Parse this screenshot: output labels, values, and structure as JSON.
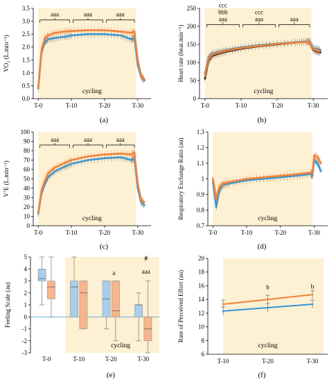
{
  "colors": {
    "band": "#fdf0d3",
    "blue": "#3a96d2",
    "orange": "#f0833a",
    "black": "#222222",
    "box_blue": "#a9cdea",
    "box_orange": "#f6b58c",
    "zero_line": "#3a96d2"
  },
  "chart_data": [
    {
      "id": "a",
      "type": "line",
      "panel_label": "(a)",
      "ylabel": "VO₂ (L.min⁻¹)",
      "ylim": [
        0,
        3.5
      ],
      "yticks": [
        0,
        0.5,
        1,
        1.5,
        2,
        2.5,
        3,
        3.5
      ],
      "ytick_labels": [
        "0.0",
        "0.5",
        "1.0",
        "1.5",
        "2.0",
        "2.5",
        "3.0",
        "3.5"
      ],
      "xlim": [
        -1.5,
        34
      ],
      "xticks": [
        0,
        10,
        20,
        30
      ],
      "xtick_labels": [
        "T-0",
        "T-10",
        "T-20",
        "T-30"
      ],
      "band": [
        0,
        29.5
      ],
      "band_label": "cycling",
      "annotations": [
        {
          "label": "aaa",
          "x0": 0.5,
          "x1": 9.5,
          "y": 3.05
        },
        {
          "label": "aaa",
          "x0": 10.5,
          "x1": 19.5,
          "y": 3.05
        },
        {
          "label": "aaa",
          "x0": 20.5,
          "x1": 29,
          "y": 3.05
        }
      ],
      "series": [
        {
          "color": "blue",
          "x": [
            0,
            1,
            2,
            3,
            5,
            8,
            10,
            15,
            20,
            25,
            28,
            29,
            30,
            31,
            32
          ],
          "y": [
            0.4,
            1.8,
            2.2,
            2.3,
            2.35,
            2.4,
            2.45,
            2.5,
            2.5,
            2.45,
            2.3,
            2.35,
            1.3,
            0.85,
            0.7
          ]
        },
        {
          "color": "orange",
          "x": [
            0,
            1,
            2,
            3,
            5,
            8,
            10,
            15,
            20,
            25,
            28,
            29,
            30,
            31,
            32
          ],
          "y": [
            0.45,
            1.9,
            2.35,
            2.45,
            2.55,
            2.6,
            2.62,
            2.65,
            2.65,
            2.6,
            2.55,
            2.6,
            1.5,
            0.9,
            0.75
          ]
        }
      ]
    },
    {
      "id": "b",
      "type": "line",
      "panel_label": "(b)",
      "ylabel": "Heart rate (beat.min⁻¹)",
      "ylim": [
        0,
        250
      ],
      "yticks": [
        0,
        50,
        100,
        150,
        200,
        250
      ],
      "ytick_labels": [
        "0",
        "50",
        "100",
        "150",
        "200",
        "250"
      ],
      "xlim": [
        -1.5,
        34
      ],
      "xticks": [
        0,
        10,
        20,
        30
      ],
      "xtick_labels": [
        "T-0",
        "T-10",
        "T-20",
        "T-30"
      ],
      "band": [
        0,
        29.5
      ],
      "band_label": "cycling",
      "annotations": [
        {
          "label": "aaa",
          "extra": [
            "ccc",
            "bbb"
          ],
          "x0": 0.5,
          "x1": 9.5,
          "y": 205
        },
        {
          "label": "aaa",
          "extra": [
            "ccc"
          ],
          "x0": 10.5,
          "x1": 19.5,
          "y": 205
        },
        {
          "label": "aaa",
          "x0": 20.5,
          "x1": 29,
          "y": 205
        }
      ],
      "series": [
        {
          "color": "black",
          "x": [
            0,
            1,
            2,
            4,
            6,
            10,
            15,
            20,
            25,
            28,
            29,
            30,
            31,
            32
          ],
          "y": [
            55,
            105,
            118,
            125,
            130,
            138,
            145,
            150,
            155,
            158,
            157,
            135,
            130,
            128
          ]
        },
        {
          "color": "blue",
          "x": [
            0,
            1,
            2,
            4,
            6,
            10,
            15,
            20,
            25,
            28,
            29,
            30,
            31,
            32
          ],
          "y": [
            70,
            115,
            125,
            130,
            135,
            142,
            148,
            152,
            156,
            158,
            158,
            140,
            138,
            135
          ]
        },
        {
          "color": "orange",
          "x": [
            0,
            1,
            2,
            4,
            6,
            10,
            15,
            20,
            25,
            28,
            29,
            30,
            31,
            32
          ],
          "y": [
            62,
            110,
            122,
            128,
            133,
            140,
            146,
            151,
            155,
            157,
            157,
            138,
            133,
            132
          ]
        }
      ]
    },
    {
      "id": "c",
      "type": "line",
      "panel_label": "(c)",
      "ylabel": "V’E (L.min⁻¹)",
      "ylim": [
        0,
        100
      ],
      "yticks": [
        0,
        10,
        20,
        30,
        40,
        50,
        60,
        70,
        80,
        90,
        100
      ],
      "ytick_labels": [
        "0",
        "10",
        "20",
        "30",
        "40",
        "50",
        "60",
        "70",
        "80",
        "90",
        "100"
      ],
      "xlim": [
        -1.5,
        34
      ],
      "xticks": [
        0,
        10,
        20,
        30
      ],
      "xtick_labels": [
        "T-0",
        "T-10",
        "T-20",
        "T-30"
      ],
      "band": [
        0,
        29.5
      ],
      "band_label": "cycling",
      "annotations": [
        {
          "label": "aaa",
          "x0": 0.5,
          "x1": 9.5,
          "y": 86
        },
        {
          "label": "aaa",
          "x0": 10.5,
          "x1": 19.5,
          "y": 86
        },
        {
          "label": "aaa",
          "x0": 20.5,
          "x1": 29,
          "y": 86
        }
      ],
      "series": [
        {
          "color": "blue",
          "x": [
            0,
            1,
            2,
            3,
            5,
            8,
            10,
            15,
            20,
            25,
            28,
            29,
            30,
            31,
            32
          ],
          "y": [
            13,
            35,
            45,
            52,
            58,
            63,
            66,
            70,
            72,
            73,
            70,
            72,
            40,
            25,
            22
          ]
        },
        {
          "color": "orange",
          "x": [
            0,
            1,
            2,
            3,
            5,
            8,
            10,
            15,
            20,
            25,
            28,
            29,
            30,
            31,
            32
          ],
          "y": [
            14,
            38,
            48,
            56,
            62,
            67,
            70,
            74,
            76,
            77,
            76,
            78,
            45,
            28,
            25
          ]
        }
      ]
    },
    {
      "id": "d",
      "type": "line",
      "panel_label": "(d)",
      "ylabel": "Respiratory Exchange Ratio (au)",
      "ylim": [
        0.7,
        1.3
      ],
      "yticks": [
        0.7,
        0.8,
        0.9,
        1.0,
        1.1,
        1.2,
        1.3
      ],
      "ytick_labels": [
        "0.7",
        "0.8",
        "0.9",
        "1",
        "1.1",
        "1.2",
        "1.3"
      ],
      "xlim": [
        -1.5,
        34
      ],
      "xticks": [
        0,
        10,
        20,
        30
      ],
      "xtick_labels": [
        "T-0",
        "T-10",
        "T-20",
        "T-30"
      ],
      "band": [
        0,
        29.5
      ],
      "band_label": "cycling",
      "annotations": [],
      "series": [
        {
          "color": "blue",
          "x": [
            0,
            0.5,
            1,
            1.5,
            2,
            3,
            5,
            10,
            15,
            20,
            25,
            29,
            29.5,
            30,
            31,
            32
          ],
          "y": [
            0.98,
            0.9,
            0.82,
            0.88,
            0.93,
            0.96,
            0.97,
            0.99,
            1.0,
            1.01,
            1.02,
            1.03,
            1.02,
            1.12,
            1.1,
            1.05
          ]
        },
        {
          "color": "orange",
          "x": [
            0,
            0.5,
            1,
            1.5,
            2,
            3,
            5,
            10,
            15,
            20,
            25,
            29,
            29.5,
            30,
            31,
            32
          ],
          "y": [
            1.0,
            0.94,
            0.87,
            0.92,
            0.95,
            0.97,
            0.98,
            1.0,
            1.01,
            1.02,
            1.03,
            1.04,
            1.04,
            1.15,
            1.14,
            1.1
          ]
        }
      ]
    },
    {
      "id": "e",
      "type": "box",
      "panel_label": "(e)",
      "ylabel": "Feeling Scale (au)",
      "ylim": [
        -3,
        5
      ],
      "yticks": [
        -3,
        -2,
        -1,
        0,
        1,
        2,
        3,
        4,
        5
      ],
      "ytick_labels": [
        "-3",
        "-2",
        "-1",
        "0",
        "1",
        "2",
        "3",
        "4",
        "5"
      ],
      "categories": [
        "T-0",
        "T-10",
        "T-20",
        "T-30"
      ],
      "band_categories": [
        1,
        3
      ],
      "band_label": "cycling",
      "cat_annotations": [
        {
          "cat": 2,
          "label": "a",
          "y": 3.5
        },
        {
          "cat": 3,
          "label": "aaa",
          "y": 3.6
        },
        {
          "cat": 3,
          "label": "#",
          "y": 4.7
        }
      ],
      "series": [
        {
          "color": "box_blue",
          "boxes": [
            {
              "min": 1,
              "q1": 3,
              "median": 3.2,
              "q3": 4,
              "max": 5
            },
            {
              "min": 0,
              "q1": 0,
              "median": 2.5,
              "q3": 3,
              "max": 5
            },
            {
              "min": -1,
              "q1": 0,
              "median": 1.5,
              "q3": 3,
              "max": 3
            },
            {
              "min": -2,
              "q1": 0,
              "median": 1,
              "q3": 1,
              "max": 2
            }
          ]
        },
        {
          "color": "box_orange",
          "boxes": [
            {
              "min": 0,
              "q1": 1.5,
              "median": 2.5,
              "q3": 3,
              "max": 5
            },
            {
              "min": -1,
              "q1": -1,
              "median": 2,
              "q3": 3,
              "max": 3
            },
            {
              "min": -2,
              "q1": 0,
              "median": 0.5,
              "q3": 3,
              "max": 3
            },
            {
              "min": -3,
              "q1": -2,
              "median": -1,
              "q3": 0,
              "max": 3
            }
          ]
        }
      ]
    },
    {
      "id": "f",
      "type": "line",
      "panel_label": "(f)",
      "ylabel": "Rate of Perceived Effort (au)",
      "ylim": [
        6,
        20
      ],
      "yticks": [
        6,
        8,
        10,
        12,
        14,
        16,
        18,
        20
      ],
      "ytick_labels": [
        "6",
        "8",
        "10",
        "12",
        "14",
        "16",
        "18",
        "20"
      ],
      "categories": [
        "T-10",
        "T-20",
        "T-30"
      ],
      "band_label": "cycling",
      "cat_annotations": [
        {
          "cat": 1,
          "label": "b",
          "y": 15.5
        },
        {
          "cat": 2,
          "label": "b",
          "y": 15.6
        }
      ],
      "series": [
        {
          "color": "blue",
          "values": [
            12.3,
            12.8,
            13.3
          ]
        },
        {
          "color": "orange",
          "values": [
            13.3,
            14.0,
            14.7
          ]
        }
      ]
    }
  ]
}
